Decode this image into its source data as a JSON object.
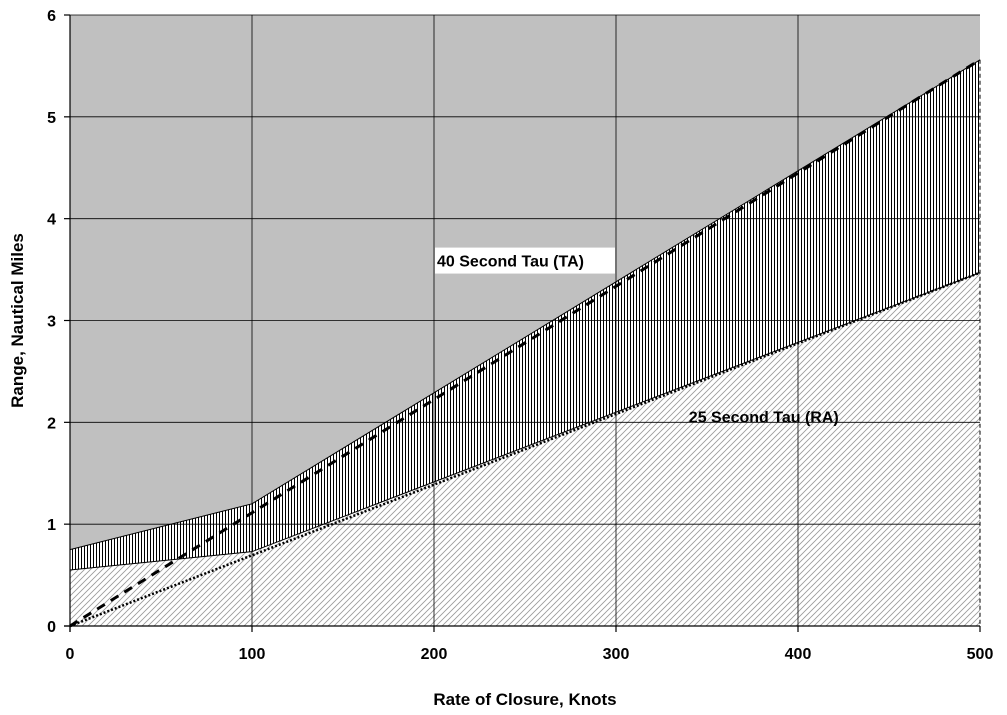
{
  "chart_data": {
    "type": "area",
    "xlabel": "Rate of Closure, Knots",
    "ylabel": "Range, Nautical Miles",
    "xlim": [
      0,
      500
    ],
    "ylim": [
      0,
      6
    ],
    "x_ticks": [
      "0",
      "100",
      "200",
      "300",
      "400",
      "500"
    ],
    "y_ticks": [
      "0",
      "1",
      "2",
      "3",
      "4",
      "5",
      "6"
    ],
    "grid": true,
    "series": [
      {
        "x": [
          0,
          100,
          500
        ],
        "y": [
          0.75,
          1.2,
          5.56
        ]
      },
      {
        "x": [
          0,
          100,
          500
        ],
        "y": [
          0.55,
          0.73,
          3.47
        ]
      },
      {
        "x": [
          0,
          500
        ],
        "y": [
          0,
          5.56
        ]
      },
      {
        "x": [
          0,
          500
        ],
        "y": [
          0,
          3.47
        ]
      }
    ],
    "annotations": [
      {
        "text": "40 Second Tau (TA)",
        "x": 200,
        "y": 3.5
      },
      {
        "text": "25 Second Tau (RA)",
        "x": 340,
        "y": 2.0
      }
    ],
    "colors": {
      "background": "#c0c0c0",
      "hatch": "#000000",
      "ra_fill": "#ffffff"
    }
  }
}
